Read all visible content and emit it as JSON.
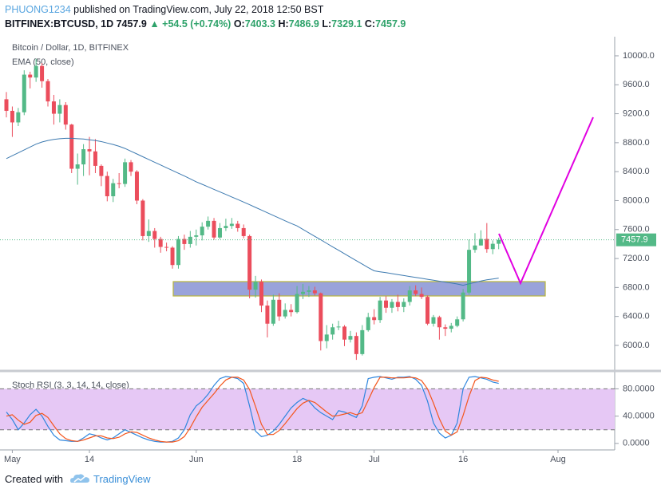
{
  "header": {
    "author": "PHUONG1234",
    "published": " published on TradingView.com, July 22, 2018 12:50 BST",
    "symbol": "BITFINEX:BTCUSD, 1D",
    "last": "7457.9",
    "change": "▲ +54.5 (+0.74%)",
    "ohlc": [
      [
        "O:",
        "7403.3"
      ],
      [
        "H:",
        "7486.9"
      ],
      [
        "L:",
        "7329.1"
      ],
      [
        "C:",
        "7457.9"
      ]
    ]
  },
  "footer": {
    "text": "Created with",
    "brand": "TradingView"
  },
  "chart_data": [
    {
      "type": "candlestick",
      "title": "Bitcoin / Dollar, 1D, BITFINEX",
      "up_color": "#53b987",
      "down_color": "#eb4d5c",
      "categories": [
        null,
        "May",
        null,
        null,
        null,
        null,
        null,
        null,
        null,
        null,
        null,
        null,
        null,
        null,
        "14",
        null,
        null,
        null,
        null,
        null,
        null,
        null,
        null,
        null,
        null,
        null,
        null,
        null,
        null,
        null,
        null,
        null,
        "Jun",
        null,
        null,
        null,
        null,
        null,
        null,
        null,
        null,
        null,
        null,
        null,
        null,
        null,
        null,
        null,
        null,
        "18",
        null,
        null,
        null,
        null,
        null,
        null,
        null,
        null,
        null,
        null,
        null,
        null,
        "Jul",
        null,
        null,
        null,
        null,
        null,
        null,
        null,
        null,
        null,
        null,
        null,
        null,
        null,
        null,
        "16",
        null,
        null,
        null,
        null,
        null,
        null,
        null,
        null,
        null,
        null,
        null,
        null,
        null,
        null,
        null,
        "Aug",
        null,
        null,
        null,
        null,
        null,
        null,
        null,
        null,
        null
      ],
      "open": [
        9400,
        9240,
        9080,
        9220,
        9740,
        9700,
        9860,
        9650,
        9370,
        9200,
        9320,
        9050,
        8440,
        8500,
        8710,
        8680,
        8480,
        8340,
        8060,
        8240,
        8230,
        8530,
        8400,
        8000,
        7510,
        7580,
        7470,
        7360,
        7350,
        7110,
        7470,
        7400,
        7500,
        7520,
        7640,
        7720,
        7490,
        7620,
        7650,
        7680,
        7620,
        7510,
        6770,
        6880,
        6550,
        6300,
        6630,
        6400,
        6490,
        6460,
        6710,
        6740,
        6760,
        6720,
        6060,
        6150,
        6250,
        6260,
        6080,
        6130,
        5880,
        6210,
        6390,
        6350,
        6620,
        6520,
        6600,
        6530,
        6600,
        6760,
        6710,
        6670,
        6300,
        6390,
        6250,
        6230,
        6270,
        6360,
        6730,
        7320,
        7380,
        7470,
        7330,
        7403.3,
        null,
        null,
        null,
        null,
        null,
        null,
        null,
        null,
        null,
        null,
        null,
        null,
        null,
        null,
        null,
        null,
        null,
        null,
        null
      ],
      "high": [
        9500,
        9300,
        9280,
        9800,
        9780,
        9960,
        9900,
        9680,
        9460,
        9400,
        9360,
        9060,
        8650,
        8780,
        8880,
        8850,
        8500,
        8400,
        8300,
        8380,
        8580,
        8560,
        8420,
        8020,
        7740,
        7620,
        7500,
        7420,
        7370,
        7510,
        7530,
        7580,
        7600,
        7700,
        7780,
        7760,
        7690,
        7750,
        7760,
        7720,
        7670,
        7530,
        6960,
        6910,
        6620,
        6700,
        6720,
        6580,
        6570,
        6820,
        6850,
        6820,
        6810,
        6730,
        6280,
        6300,
        6340,
        6280,
        6200,
        6180,
        6280,
        6450,
        6500,
        6670,
        6680,
        6640,
        6700,
        6650,
        6820,
        6830,
        6800,
        6690,
        6420,
        6410,
        6290,
        6310,
        6400,
        6780,
        7460,
        7550,
        7590,
        7690,
        7450,
        7486.9,
        null,
        null,
        null,
        null,
        null,
        null,
        null,
        null,
        null,
        null,
        null,
        null,
        null,
        null,
        null,
        null,
        null,
        null,
        null
      ],
      "low": [
        9150,
        8880,
        9030,
        9180,
        9550,
        9640,
        9560,
        9300,
        9050,
        9080,
        8980,
        8380,
        8220,
        8340,
        8350,
        8380,
        8200,
        7990,
        7980,
        8170,
        8190,
        8340,
        7950,
        7450,
        7430,
        7350,
        7280,
        7300,
        7060,
        7060,
        7320,
        7350,
        7380,
        7450,
        7600,
        7460,
        7470,
        7580,
        7610,
        7570,
        7480,
        6650,
        6660,
        6460,
        6110,
        6270,
        6340,
        6370,
        6400,
        6440,
        6640,
        6670,
        6690,
        5930,
        5960,
        6080,
        6210,
        5990,
        6040,
        5800,
        5860,
        6190,
        6290,
        6310,
        6450,
        6450,
        6470,
        6460,
        6550,
        6680,
        6640,
        6280,
        6260,
        6080,
        6130,
        6180,
        6250,
        6330,
        6700,
        7280,
        7380,
        7280,
        7260,
        7329.1,
        null,
        null,
        null,
        null,
        null,
        null,
        null,
        null,
        null,
        null,
        null,
        null,
        null,
        null,
        null,
        null,
        null,
        null,
        null
      ],
      "close": [
        9240,
        9080,
        9220,
        9740,
        9700,
        9860,
        9650,
        9370,
        9200,
        9320,
        9050,
        8440,
        8500,
        8710,
        8680,
        8480,
        8340,
        8060,
        8240,
        8230,
        8530,
        8400,
        8000,
        7510,
        7580,
        7470,
        7360,
        7350,
        7110,
        7470,
        7400,
        7500,
        7520,
        7640,
        7720,
        7490,
        7620,
        7650,
        7680,
        7620,
        7510,
        6770,
        6880,
        6550,
        6300,
        6630,
        6400,
        6490,
        6460,
        6710,
        6740,
        6760,
        6720,
        6060,
        6150,
        6250,
        6260,
        6080,
        6130,
        5880,
        6210,
        6390,
        6350,
        6620,
        6520,
        6600,
        6530,
        6600,
        6760,
        6710,
        6670,
        6300,
        6390,
        6250,
        6230,
        6270,
        6360,
        6730,
        7320,
        7380,
        7470,
        7330,
        7403.3,
        7457.9,
        null,
        null,
        null,
        null,
        null,
        null,
        null,
        null,
        null,
        null,
        null,
        null,
        null,
        null,
        null,
        null,
        null,
        null,
        null
      ],
      "series": [
        {
          "name": "EMA (50, close)",
          "color": "#3d7ab0",
          "values": [
            8580,
            8620,
            8660,
            8700,
            8740,
            8780,
            8810,
            8830,
            8845,
            8855,
            8860,
            8860,
            8855,
            8850,
            8840,
            8830,
            8815,
            8795,
            8775,
            8750,
            8720,
            8682,
            8644,
            8606,
            8568,
            8530,
            8492,
            8454,
            8416,
            8378,
            8340,
            8300,
            8260,
            8225,
            8190,
            8155,
            8120,
            8085,
            8050,
            8015,
            7980,
            7943,
            7906,
            7869,
            7832,
            7795,
            7758,
            7721,
            7684,
            7650,
            7602,
            7554,
            7506,
            7458,
            7410,
            7362,
            7314,
            7266,
            7218,
            7170,
            7122,
            7075,
            7030,
            7017,
            7004,
            6991,
            6978,
            6965,
            6952,
            6939,
            6926,
            6913,
            6900,
            6887,
            6874,
            6861,
            6848,
            6830,
            6850,
            6870,
            6890,
            6905,
            6918,
            6930,
            null,
            null,
            null,
            null,
            null,
            null,
            null,
            null,
            null,
            null,
            null,
            null,
            null,
            null,
            null,
            null,
            null,
            null,
            null
          ]
        }
      ],
      "ylim": [
        5669,
        10242
      ],
      "yticks": [
        {
          "value": 6000,
          "label": "6000.0"
        },
        {
          "value": 6400,
          "label": "6400.0"
        },
        {
          "value": 6800,
          "label": "6800.0"
        },
        {
          "value": 7200,
          "label": "7200.0"
        },
        {
          "value": 7600,
          "label": "7600.0"
        },
        {
          "value": 8000,
          "label": "8000.0"
        },
        {
          "value": 8400,
          "label": "8400.0"
        },
        {
          "value": 8800,
          "label": "8800.0"
        },
        {
          "value": 9200,
          "label": "9200.0"
        },
        {
          "value": 9600,
          "label": "9600.0"
        },
        {
          "value": 10000,
          "label": "10000.0"
        }
      ]
    },
    {
      "type": "line",
      "title": "Stoch RSI (3, 3, 14, 14, close)",
      "band": [
        20,
        80
      ],
      "band_color": "#e6c8f5",
      "series": [
        {
          "color": "#2e86de",
          "values": [
            46,
            35,
            20,
            30,
            42,
            50,
            40,
            25,
            12,
            5,
            4,
            3,
            3,
            8,
            14,
            12,
            8,
            5,
            8,
            14,
            20,
            16,
            12,
            8,
            5,
            3,
            2,
            2,
            3,
            8,
            20,
            42,
            55,
            62,
            72,
            85,
            95,
            98,
            97,
            95,
            88,
            55,
            18,
            10,
            12,
            18,
            28,
            40,
            52,
            60,
            66,
            62,
            52,
            45,
            40,
            35,
            48,
            46,
            42,
            38,
            55,
            95,
            97,
            98,
            96,
            94,
            97,
            97,
            98,
            94,
            85,
            62,
            30,
            15,
            8,
            12,
            30,
            80,
            97,
            98,
            96,
            94,
            90,
            88,
            null,
            null,
            null,
            null,
            null,
            null,
            null,
            null,
            null,
            null,
            null,
            null,
            null,
            null,
            null,
            null,
            null,
            null,
            null
          ]
        },
        {
          "color": "#f4561d",
          "values": [
            40,
            42,
            34,
            28,
            31,
            41,
            44,
            38,
            26,
            14,
            7,
            4,
            3,
            5,
            8,
            11,
            11,
            8,
            7,
            9,
            14,
            17,
            16,
            12,
            8,
            5,
            3,
            2,
            2,
            4,
            10,
            23,
            39,
            53,
            63,
            73,
            84,
            93,
            97,
            97,
            93,
            79,
            54,
            28,
            13,
            13,
            19,
            29,
            40,
            51,
            59,
            63,
            60,
            53,
            46,
            40,
            41,
            43,
            45,
            42,
            45,
            63,
            82,
            97,
            97,
            96,
            96,
            96,
            97,
            96,
            92,
            80,
            59,
            36,
            18,
            12,
            17,
            41,
            69,
            92,
            97,
            96,
            93,
            91,
            null,
            null,
            null,
            null,
            null,
            null,
            null,
            null,
            null,
            null,
            null,
            null,
            null,
            null,
            null,
            null,
            null,
            null,
            null
          ]
        }
      ],
      "ylim": [
        -8.4,
        102.7
      ],
      "yticks": [
        {
          "value": 0,
          "label": "0.0000"
        },
        {
          "value": 40,
          "label": "40.0000"
        },
        {
          "value": 80,
          "label": "80.0000"
        }
      ]
    }
  ]
}
